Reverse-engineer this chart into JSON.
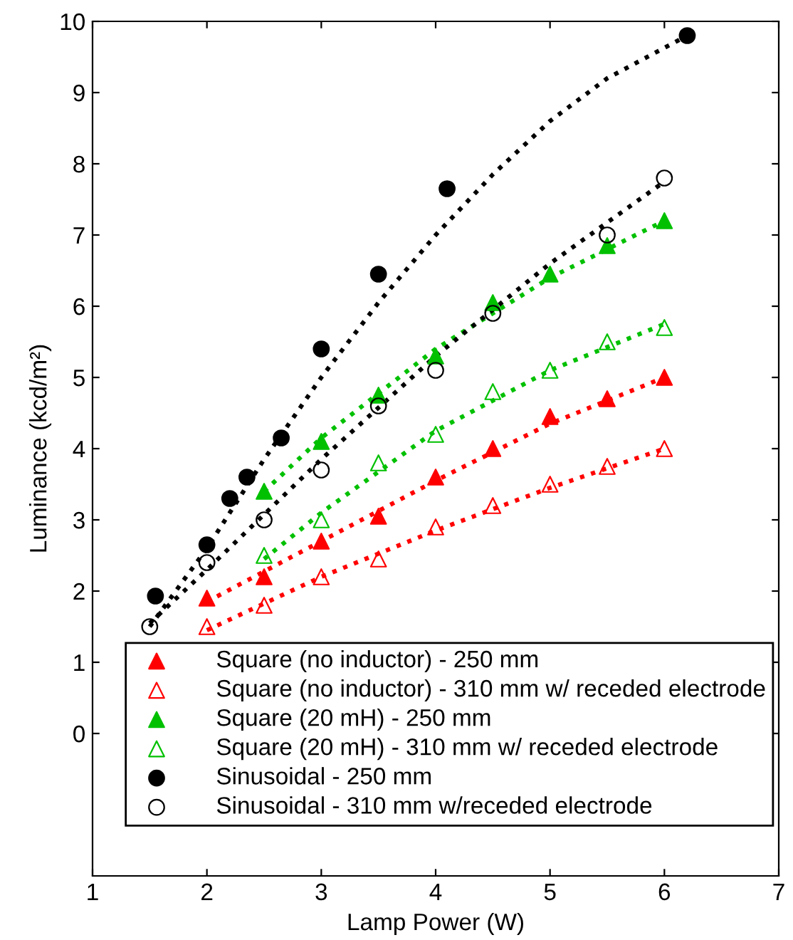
{
  "chart_data": {
    "type": "scatter",
    "xlabel": "Lamp Power (W)",
    "ylabel": "Luminance (kcd/m²)",
    "xlim": [
      1,
      7
    ],
    "xticks": [
      1,
      2,
      3,
      4,
      5,
      6,
      7
    ],
    "ylim": [
      -2,
      10
    ],
    "yticks": [
      0,
      1,
      2,
      3,
      4,
      5,
      6,
      7,
      8,
      9,
      10
    ],
    "grid": false,
    "legend": "bottom",
    "series": [
      {
        "name": "Square (no inductor) - 250 mm",
        "color": "#ff0000",
        "marker": "triangle",
        "x": [
          2,
          2.5,
          3,
          3.5,
          4,
          4.5,
          5,
          5.5,
          6
        ],
        "values": [
          1.9,
          2.2,
          2.7,
          3.05,
          3.6,
          4.0,
          4.45,
          4.7,
          5.0
        ]
      },
      {
        "name": "Square (no inductor) - 310 mm w/ receded electrode",
        "color": "#ff0000",
        "marker": "triangle",
        "x": [
          2,
          2.5,
          3,
          3.5,
          4,
          4.5,
          5,
          5.5,
          6
        ],
        "values": [
          1.5,
          1.8,
          2.2,
          2.45,
          2.9,
          3.2,
          3.5,
          3.75,
          4.0
        ]
      },
      {
        "name": "Square (20 mH) - 250 mm",
        "color": "#00c000",
        "marker": "triangle",
        "x": [
          2.5,
          3,
          3.5,
          4,
          4.5,
          5,
          5.5,
          6
        ],
        "values": [
          3.4,
          4.1,
          4.75,
          5.3,
          6.05,
          6.45,
          6.85,
          7.2
        ]
      },
      {
        "name": "Square (20 mH) - 310 mm w/ receded electrode",
        "color": "#00c000",
        "marker": "triangle",
        "x": [
          2.5,
          3,
          3.5,
          4,
          4.5,
          5,
          5.5,
          6
        ],
        "values": [
          2.5,
          3.0,
          3.8,
          4.2,
          4.8,
          5.1,
          5.5,
          5.7
        ]
      },
      {
        "name": "Sinusoidal - 250 mm",
        "color": "#000000",
        "marker": "circle",
        "x": [
          1.55,
          2,
          2.2,
          2.35,
          2.65,
          3,
          3.5,
          4.1,
          6.2
        ],
        "values": [
          1.93,
          2.65,
          3.3,
          3.6,
          4.15,
          5.4,
          6.45,
          7.65,
          9.8
        ]
      },
      {
        "name": "Sinusoidal - 310 mm w/receded electrode",
        "color": "#000000",
        "marker": "circle",
        "x": [
          1.5,
          2,
          2.5,
          3,
          3.5,
          4,
          4.5,
          5.5,
          6
        ],
        "values": [
          1.5,
          2.4,
          3.0,
          3.7,
          4.6,
          5.1,
          5.9,
          7.0,
          7.8
        ]
      },
      {
        "type": "line",
        "color": "#ff0000",
        "line_style": "dotted",
        "marker": "none",
        "x": [
          2,
          3,
          4,
          5,
          6
        ],
        "values": [
          1.85,
          2.7,
          3.55,
          4.35,
          5.0
        ]
      },
      {
        "type": "line",
        "color": "#ff0000",
        "line_style": "dotted",
        "marker": "none",
        "x": [
          2,
          3,
          4,
          5,
          6
        ],
        "values": [
          1.45,
          2.2,
          2.85,
          3.45,
          4.0
        ]
      },
      {
        "type": "line",
        "color": "#00c000",
        "line_style": "dotted",
        "marker": "none",
        "x": [
          2.5,
          3,
          4,
          5,
          6
        ],
        "values": [
          3.4,
          4.15,
          5.4,
          6.4,
          7.2
        ]
      },
      {
        "type": "line",
        "color": "#00c000",
        "line_style": "dotted",
        "marker": "none",
        "x": [
          2.5,
          3,
          4,
          5,
          6
        ],
        "values": [
          2.45,
          3.1,
          4.25,
          5.1,
          5.75
        ]
      },
      {
        "type": "line",
        "color": "#000000",
        "line_style": "dotted",
        "marker": "none",
        "x": [
          1.5,
          2,
          2.5,
          3,
          3.5,
          4,
          4.5,
          5,
          5.5,
          6.2
        ],
        "values": [
          1.5,
          2.6,
          3.85,
          5.0,
          6.05,
          7.0,
          7.85,
          8.6,
          9.2,
          9.8
        ]
      },
      {
        "type": "line",
        "color": "#000000",
        "line_style": "dotted",
        "marker": "none",
        "x": [
          1.5,
          2,
          3,
          4,
          5,
          6
        ],
        "values": [
          1.55,
          2.3,
          3.85,
          5.3,
          6.6,
          7.75
        ]
      }
    ]
  }
}
